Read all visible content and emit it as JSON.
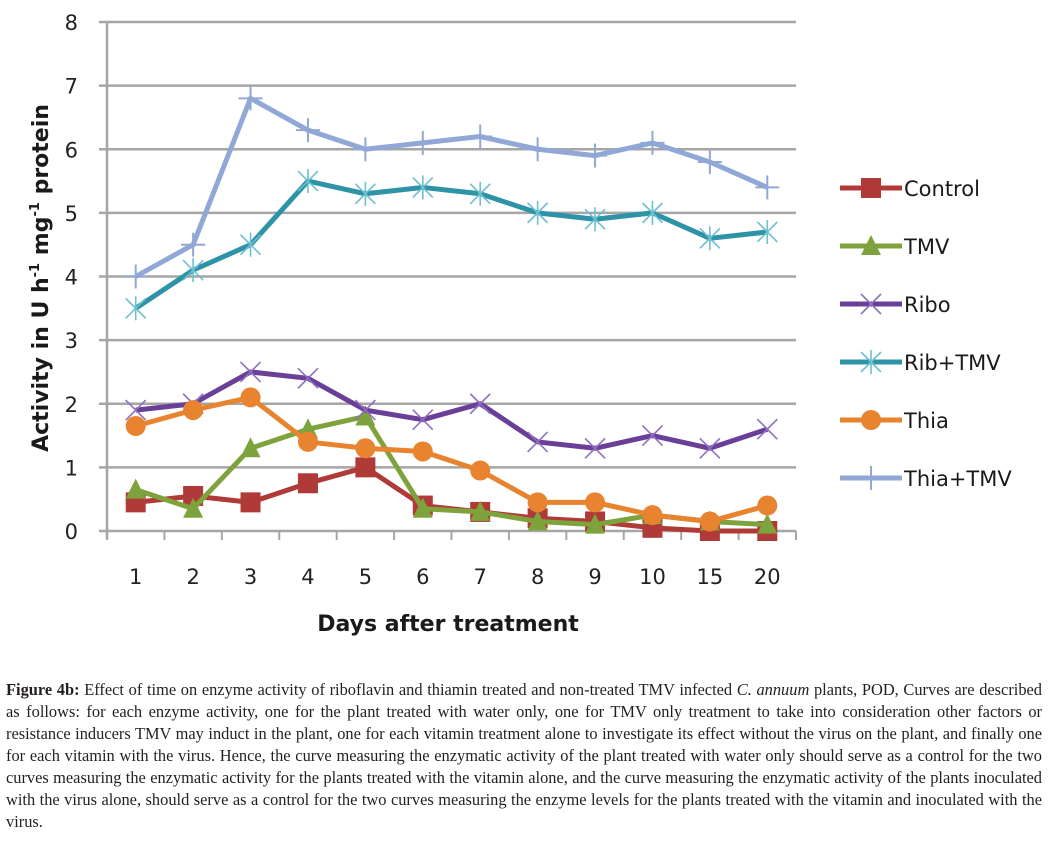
{
  "chart_data": {
    "type": "line",
    "title": "",
    "xlabel": "Days after treatment",
    "ylabel": "Activity in U h⁻¹ mg⁻¹ protein",
    "ylabel_parts": {
      "pre": "Activity in U h",
      "sup1": "-1",
      "mid": " mg",
      "sup2": "-1",
      "post": " protein"
    },
    "categories": [
      "1",
      "2",
      "3",
      "4",
      "5",
      "6",
      "7",
      "8",
      "9",
      "10",
      "15",
      "20"
    ],
    "ylim": [
      0,
      8
    ],
    "yticks": [
      0,
      1,
      2,
      3,
      4,
      5,
      6,
      7,
      8
    ],
    "grid": true,
    "legend_position": "right",
    "series": [
      {
        "name": "Control",
        "color": "#b03a37",
        "marker": "square",
        "values": [
          0.45,
          0.55,
          0.45,
          0.75,
          1.0,
          0.4,
          0.3,
          0.2,
          0.15,
          0.05,
          0.0,
          0.0
        ]
      },
      {
        "name": "TMV",
        "color": "#7ea33c",
        "marker": "triangle",
        "values": [
          0.65,
          0.35,
          1.3,
          1.6,
          1.8,
          0.35,
          0.3,
          0.15,
          0.1,
          0.25,
          0.15,
          0.1
        ]
      },
      {
        "name": "Ribo",
        "color": "#6a3f98",
        "marker": "x",
        "values": [
          1.9,
          2.0,
          2.5,
          2.4,
          1.9,
          1.75,
          2.0,
          1.4,
          1.3,
          1.5,
          1.3,
          1.6
        ]
      },
      {
        "name": "Rib+TMV",
        "color": "#2e93a6",
        "marker": "asterisk",
        "values": [
          3.5,
          4.1,
          4.5,
          5.5,
          5.3,
          5.4,
          5.3,
          5.0,
          4.9,
          5.0,
          4.6,
          4.7
        ]
      },
      {
        "name": "Thia",
        "color": "#e8832f",
        "marker": "circle",
        "values": [
          1.65,
          1.9,
          2.1,
          1.4,
          1.3,
          1.25,
          0.95,
          0.45,
          0.45,
          0.25,
          0.15,
          0.4
        ]
      },
      {
        "name": "Thia+TMV",
        "color": "#91a8d6",
        "marker": "plus",
        "values": [
          4.0,
          4.5,
          6.8,
          6.3,
          6.0,
          6.1,
          6.2,
          6.0,
          5.9,
          6.1,
          5.8,
          5.4
        ]
      }
    ]
  },
  "caption": {
    "label": "Figure 4b:",
    "text_before_species": " Effect of time on enzyme activity of riboflavin and thiamin treated and non-treated TMV infected ",
    "species": "C. annuum",
    "text_after_species": " plants, POD, Curves are described as follows: for each enzyme activity, one for the plant treated with water only, one for TMV only treatment to take into consideration other factors or resistance inducers TMV may induct in the plant, one for each vitamin treatment alone to investigate its effect without the virus on the plant, and finally one for each vitamin with the virus. Hence, the curve measuring the enzymatic activity of the plant treated with water only should serve as a control for the two curves measuring the enzymatic activity for the plants treated with the vitamin alone, and the curve measuring the enzymatic activity of the plants inoculated with the virus alone, should serve as a control for the two curves measuring the enzyme levels for the plants treated with the vitamin and inoculated with the virus."
  }
}
